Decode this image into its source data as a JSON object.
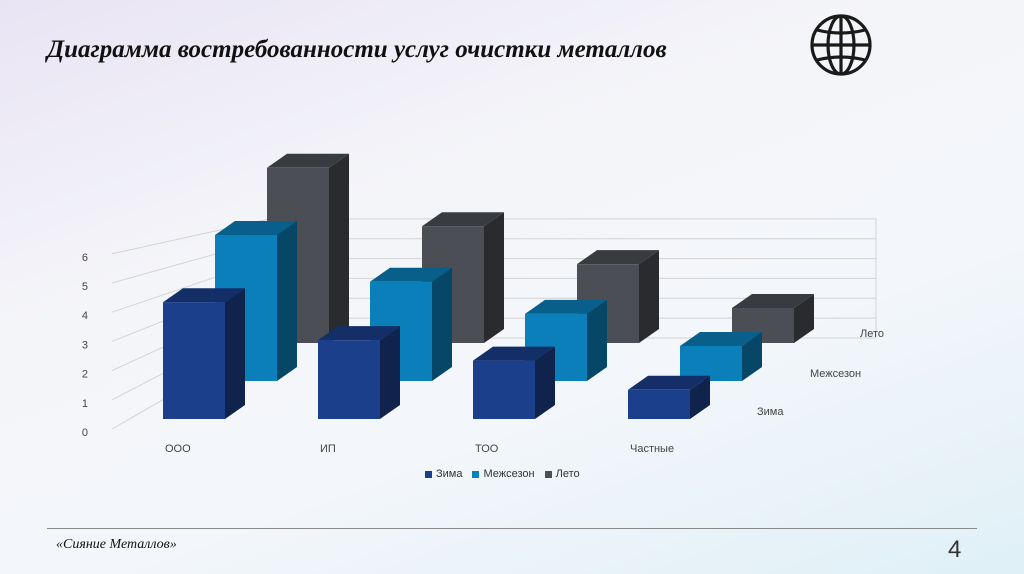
{
  "title": "Диаграмма востребованности услуг очистки металлов",
  "icons": {
    "globe": "globe-icon"
  },
  "footer": {
    "company": "«Сияние Металлов»",
    "page_number": "4"
  },
  "chart_data": {
    "type": "bar",
    "categories": [
      "ООО",
      "ИП",
      "ТОО",
      "Частные"
    ],
    "series": [
      {
        "name": "Зима",
        "values": [
          4,
          2.7,
          2,
          1
        ],
        "color": "#1b3f8b"
      },
      {
        "name": "Межсезон",
        "values": [
          5,
          3.4,
          2.3,
          1.2
        ],
        "color": "#0b7fb9"
      },
      {
        "name": "Лето",
        "values": [
          6,
          4,
          2.7,
          1.2
        ],
        "color": "#4b4f55"
      }
    ],
    "ylim": [
      0,
      6
    ],
    "yticks": [
      0,
      1,
      2,
      3,
      4,
      5,
      6
    ],
    "grid": true,
    "legend": "bottom",
    "style": "3d-column"
  }
}
